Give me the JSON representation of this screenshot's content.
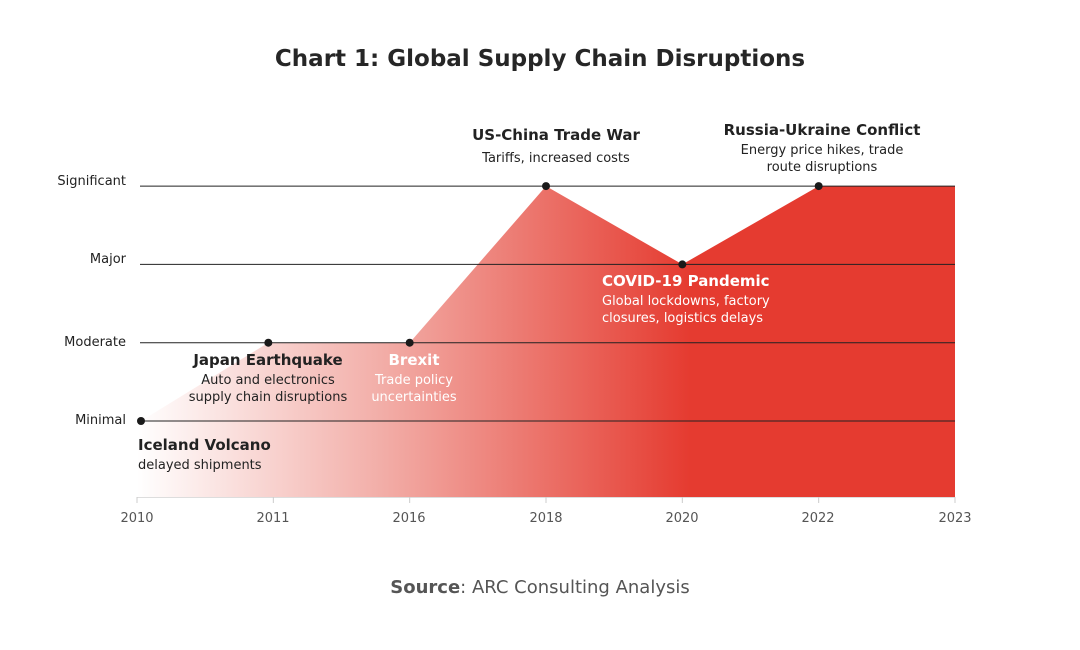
{
  "chart_data": {
    "type": "area",
    "title": "Chart 1: Global Supply Chain Disruptions",
    "categories": [
      "2010",
      "2011",
      "2016",
      "2018",
      "2020",
      "2022",
      "2023"
    ],
    "y_levels": [
      "Minimal",
      "Moderate",
      "Major",
      "Significant"
    ],
    "values": [
      1,
      2,
      2,
      4,
      3,
      4,
      4
    ],
    "colors": {
      "fill_start": "#ffffff",
      "fill_end": "#e53b30",
      "line": "#222222",
      "point": "#1a1a1a"
    },
    "grid": true,
    "events": [
      {
        "year": "2010",
        "level": "Minimal",
        "title": "Iceland Volcano",
        "description": [
          "delayed shipments"
        ]
      },
      {
        "year": "2011",
        "level": "Moderate",
        "title": "Japan Earthquake",
        "description": [
          "Auto and electronics",
          "supply chain disruptions"
        ]
      },
      {
        "year": "2016",
        "level": "Moderate",
        "title": "Brexit",
        "description": [
          "Trade policy",
          "uncertainties"
        ]
      },
      {
        "year": "2018",
        "level": "Significant",
        "title": "US-China Trade War",
        "description": [
          "Tariffs, increased costs"
        ]
      },
      {
        "year": "2020",
        "level": "Major",
        "title": "COVID-19 Pandemic",
        "description": [
          "Global lockdowns, factory",
          "closures, logistics delays"
        ]
      },
      {
        "year": "2022",
        "level": "Significant",
        "title": "Russia-Ukraine Conflict",
        "description": [
          "Energy price hikes, trade",
          "route disruptions"
        ]
      }
    ]
  },
  "source": {
    "label": "Source",
    "text": ": ARC Consulting Analysis"
  }
}
